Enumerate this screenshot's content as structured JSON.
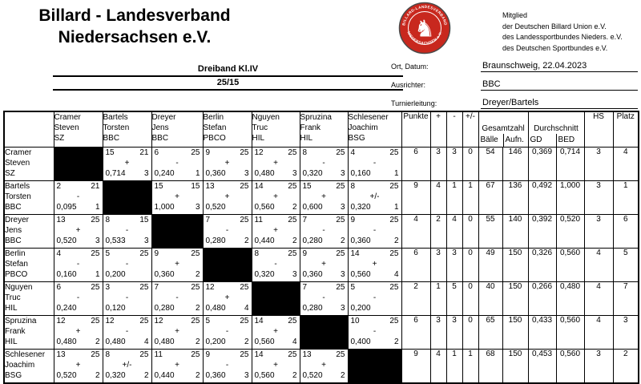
{
  "header": {
    "org_title_line1": "Billard - Landesverband",
    "org_title_line2": "Niedersachsen e.V.",
    "membership": [
      "Mitglied",
      "der Deutschen Billard Union e.V.",
      "des Landessportbundes Nieders. e.V.",
      "des Deutschen Sportbundes e.V."
    ],
    "event_title": "Dreiband Kl.IV",
    "event_subtitle": "25/15",
    "info": [
      {
        "label": "Ort, Datum:",
        "value": "Braunschweig, 22.04.2023"
      },
      {
        "label": "Ausrichter:",
        "value": "BBC"
      },
      {
        "label": "Turnierleitung:",
        "value": "Dreyer/Bartels"
      }
    ],
    "logo": {
      "text_top": "BILLARD-LANDESVERBAND",
      "text_bottom": "NIEDERSACHSEN e.V.",
      "horse_glyph": "♞",
      "red": "#c8281e"
    }
  },
  "table": {
    "labels": {
      "punkte": "Punkte",
      "plus": "+",
      "minus": "-",
      "pm": "+/-",
      "gesamtzahl": "Gesamtzahl",
      "baelle": "Bälle",
      "aufn": "Aufn.",
      "durchschnitt": "Durchschnitt",
      "gd": "GD",
      "bed": "BED",
      "hs": "HS",
      "platz": "Platz"
    },
    "players": [
      {
        "last": "Cramer",
        "first": "Steven",
        "club": "SZ"
      },
      {
        "last": "Bartels",
        "first": "Torsten",
        "club": "BBC"
      },
      {
        "last": "Dreyer",
        "first": "Jens",
        "club": "BBC"
      },
      {
        "last": "Berlin",
        "first": "Stefan",
        "club": "PBCO"
      },
      {
        "last": "Nguyen",
        "first": "Truc",
        "club": "HIL"
      },
      {
        "last": "Spruzina",
        "first": "Frank",
        "club": "HIL"
      },
      {
        "last": "Schlesener",
        "first": "Joachim",
        "club": "BSG"
      }
    ],
    "rows": [
      {
        "cells": [
          null,
          {
            "b": "15",
            "i": "21",
            "s": "+",
            "gd": "0,714",
            "hs": "3"
          },
          {
            "b": "6",
            "i": "25",
            "s": "-",
            "gd": "0,240",
            "hs": "1"
          },
          {
            "b": "9",
            "i": "25",
            "s": "+",
            "gd": "0,360",
            "hs": "3"
          },
          {
            "b": "12",
            "i": "25",
            "s": "+",
            "gd": "0,480",
            "hs": "3"
          },
          {
            "b": "8",
            "i": "25",
            "s": "-",
            "gd": "0,320",
            "hs": "3"
          },
          {
            "b": "4",
            "i": "25",
            "s": "-",
            "gd": "0,160",
            "hs": "1"
          }
        ],
        "totals": {
          "punkte": "6",
          "plus": "3",
          "minus": "3",
          "pm": "0",
          "baelle": "54",
          "aufn": "146",
          "gd": "0,369",
          "bed": "0,714",
          "hs": "3",
          "platz": "4"
        }
      },
      {
        "cells": [
          {
            "b": "2",
            "i": "21",
            "s": "-",
            "gd": "0,095",
            "hs": "1"
          },
          null,
          {
            "b": "15",
            "i": "15",
            "s": "+",
            "gd": "1,000",
            "hs": "3"
          },
          {
            "b": "13",
            "i": "25",
            "s": "+",
            "gd": "0,520",
            "hs": ""
          },
          {
            "b": "14",
            "i": "25",
            "s": "+",
            "gd": "0,560",
            "hs": "2"
          },
          {
            "b": "15",
            "i": "25",
            "s": "+",
            "gd": "0,600",
            "hs": "3"
          },
          {
            "b": "8",
            "i": "25",
            "s": "+/-",
            "gd": "0,320",
            "hs": "1"
          }
        ],
        "totals": {
          "punkte": "9",
          "plus": "4",
          "minus": "1",
          "pm": "1",
          "baelle": "67",
          "aufn": "136",
          "gd": "0,492",
          "bed": "1,000",
          "hs": "3",
          "platz": "1"
        }
      },
      {
        "cells": [
          {
            "b": "13",
            "i": "25",
            "s": "+",
            "gd": "0,520",
            "hs": "3"
          },
          {
            "b": "8",
            "i": "15",
            "s": "-",
            "gd": "0,533",
            "hs": "3"
          },
          null,
          {
            "b": "7",
            "i": "25",
            "s": "-",
            "gd": "0,280",
            "hs": "2"
          },
          {
            "b": "11",
            "i": "25",
            "s": "+",
            "gd": "0,440",
            "hs": "2"
          },
          {
            "b": "7",
            "i": "25",
            "s": "-",
            "gd": "0,280",
            "hs": "2"
          },
          {
            "b": "9",
            "i": "25",
            "s": "-",
            "gd": "0,360",
            "hs": "2"
          }
        ],
        "totals": {
          "punkte": "4",
          "plus": "2",
          "minus": "4",
          "pm": "0",
          "baelle": "55",
          "aufn": "140",
          "gd": "0,392",
          "bed": "0,520",
          "hs": "3",
          "platz": "6"
        }
      },
      {
        "cells": [
          {
            "b": "4",
            "i": "25",
            "s": "-",
            "gd": "0,160",
            "hs": "1"
          },
          {
            "b": "5",
            "i": "25",
            "s": "-",
            "gd": "0,200",
            "hs": ""
          },
          {
            "b": "9",
            "i": "25",
            "s": "+",
            "gd": "0,360",
            "hs": "2"
          },
          null,
          {
            "b": "8",
            "i": "25",
            "s": "-",
            "gd": "0,320",
            "hs": "3"
          },
          {
            "b": "9",
            "i": "25",
            "s": "+",
            "gd": "0,360",
            "hs": "3"
          },
          {
            "b": "14",
            "i": "25",
            "s": "+",
            "gd": "0,560",
            "hs": "4"
          }
        ],
        "totals": {
          "punkte": "6",
          "plus": "3",
          "minus": "3",
          "pm": "0",
          "baelle": "49",
          "aufn": "150",
          "gd": "0,326",
          "bed": "0,560",
          "hs": "4",
          "platz": "5"
        }
      },
      {
        "cells": [
          {
            "b": "6",
            "i": "25",
            "s": "-",
            "gd": "0,240",
            "hs": ""
          },
          {
            "b": "3",
            "i": "25",
            "s": "-",
            "gd": "0,120",
            "hs": ""
          },
          {
            "b": "7",
            "i": "25",
            "s": "-",
            "gd": "0,280",
            "hs": "2"
          },
          {
            "b": "12",
            "i": "25",
            "s": "+",
            "gd": "0,480",
            "hs": "4"
          },
          null,
          {
            "b": "7",
            "i": "25",
            "s": "-",
            "gd": "0,280",
            "hs": "3"
          },
          {
            "b": "5",
            "i": "25",
            "s": "-",
            "gd": "0,200",
            "hs": ""
          }
        ],
        "totals": {
          "punkte": "2",
          "plus": "1",
          "minus": "5",
          "pm": "0",
          "baelle": "40",
          "aufn": "150",
          "gd": "0,266",
          "bed": "0,480",
          "hs": "4",
          "platz": "7"
        }
      },
      {
        "cells": [
          {
            "b": "12",
            "i": "25",
            "s": "+",
            "gd": "0,480",
            "hs": "2"
          },
          {
            "b": "12",
            "i": "25",
            "s": "-",
            "gd": "0,480",
            "hs": "4"
          },
          {
            "b": "12",
            "i": "25",
            "s": "+",
            "gd": "0,480",
            "hs": "2"
          },
          {
            "b": "5",
            "i": "25",
            "s": "-",
            "gd": "0,200",
            "hs": "2"
          },
          {
            "b": "14",
            "i": "25",
            "s": "+",
            "gd": "0,560",
            "hs": "4"
          },
          null,
          {
            "b": "10",
            "i": "25",
            "s": "-",
            "gd": "0,400",
            "hs": "2"
          }
        ],
        "totals": {
          "punkte": "6",
          "plus": "3",
          "minus": "3",
          "pm": "0",
          "baelle": "65",
          "aufn": "150",
          "gd": "0,433",
          "bed": "0,560",
          "hs": "4",
          "platz": "3"
        }
      },
      {
        "cells": [
          {
            "b": "13",
            "i": "25",
            "s": "+",
            "gd": "0,520",
            "hs": "2"
          },
          {
            "b": "8",
            "i": "25",
            "s": "+/-",
            "gd": "0,320",
            "hs": "2"
          },
          {
            "b": "11",
            "i": "25",
            "s": "+",
            "gd": "0,440",
            "hs": "2"
          },
          {
            "b": "9",
            "i": "25",
            "s": "-",
            "gd": "0,360",
            "hs": "3"
          },
          {
            "b": "14",
            "i": "25",
            "s": "+",
            "gd": "0,560",
            "hs": "2"
          },
          {
            "b": "13",
            "i": "25",
            "s": "+",
            "gd": "0,520",
            "hs": "2"
          },
          null
        ],
        "totals": {
          "punkte": "9",
          "plus": "4",
          "minus": "1",
          "pm": "1",
          "baelle": "68",
          "aufn": "150",
          "gd": "0,453",
          "bed": "0,560",
          "hs": "3",
          "platz": "2"
        }
      }
    ]
  }
}
